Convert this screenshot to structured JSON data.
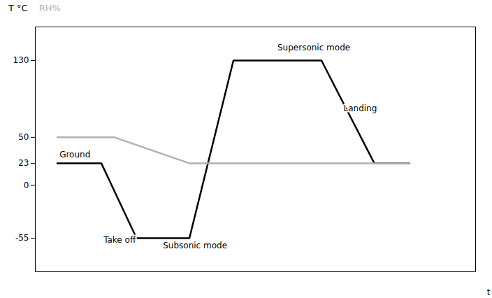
{
  "chart_data": {
    "type": "line",
    "xlabel": "t",
    "xlim": [
      0,
      10
    ],
    "ylim": [
      -90,
      165
    ],
    "yticks": [
      -55,
      0,
      23,
      50,
      130
    ],
    "tick_labels": "y",
    "series": [
      {
        "name": "T °C",
        "color": "#000000",
        "x": [
          0.5,
          1.5,
          2.3,
          3.5,
          4.5,
          6.5,
          7.7,
          8.5
        ],
        "values": [
          23,
          23,
          -55,
          -55,
          130,
          130,
          23,
          23
        ]
      },
      {
        "name": "RH%",
        "color": "#b0b0b0",
        "x": [
          0.5,
          1.8,
          3.5,
          8.5
        ],
        "values": [
          50,
          50,
          23,
          23
        ]
      }
    ],
    "annotations": [
      {
        "text": "Ground",
        "x": 0.55,
        "y": 27
      },
      {
        "text": "Take off",
        "x": 1.55,
        "y": -62
      },
      {
        "text": "Subsonic mode",
        "x": 2.9,
        "y": -68
      },
      {
        "text": "Supersonic mode",
        "x": 5.5,
        "y": 138
      },
      {
        "text": "Landing",
        "x": 7.0,
        "y": 75
      }
    ]
  }
}
